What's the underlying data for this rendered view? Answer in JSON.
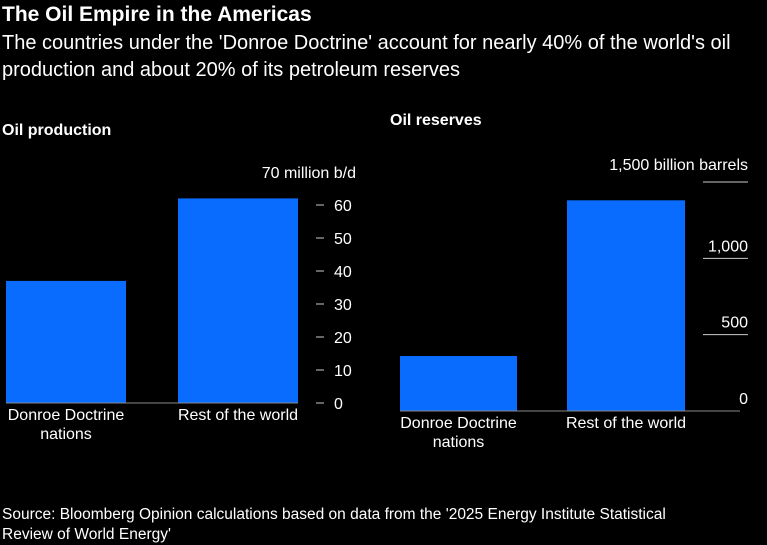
{
  "title": "The Oil Empire in the Americas",
  "subtitle": "The countries under the 'Donroe Doctrine' account for nearly 40% of the world's oil production and about 20% of its petroleum reserves",
  "source": "Source: Bloomberg Opinion calculations based on data from the '2025 Energy Institute Statistical Review of World Energy'",
  "colors": {
    "bar": "#0a6cff",
    "background": "#000000",
    "text": "#ffffff"
  },
  "chart_data": [
    {
      "type": "bar",
      "title": "Oil production",
      "unit_label": "70 million b/d",
      "categories": [
        [
          "Donroe Doctrine",
          "nations"
        ],
        [
          "Rest of the world"
        ]
      ],
      "values": [
        37,
        62
      ],
      "ylim": [
        0,
        70
      ],
      "yticks": [
        "0",
        "10",
        "20",
        "30",
        "40",
        "50",
        "60"
      ],
      "grid": false
    },
    {
      "type": "bar",
      "title": "Oil reserves",
      "unit_label": "1,500 billion barrels",
      "categories": [
        [
          "Donroe Doctrine",
          "nations"
        ],
        [
          "Rest of the world"
        ]
      ],
      "values": [
        360,
        1380
      ],
      "ylim": [
        0,
        1500
      ],
      "yticks": [
        "0",
        "500",
        "1,000"
      ],
      "grid": true
    }
  ]
}
